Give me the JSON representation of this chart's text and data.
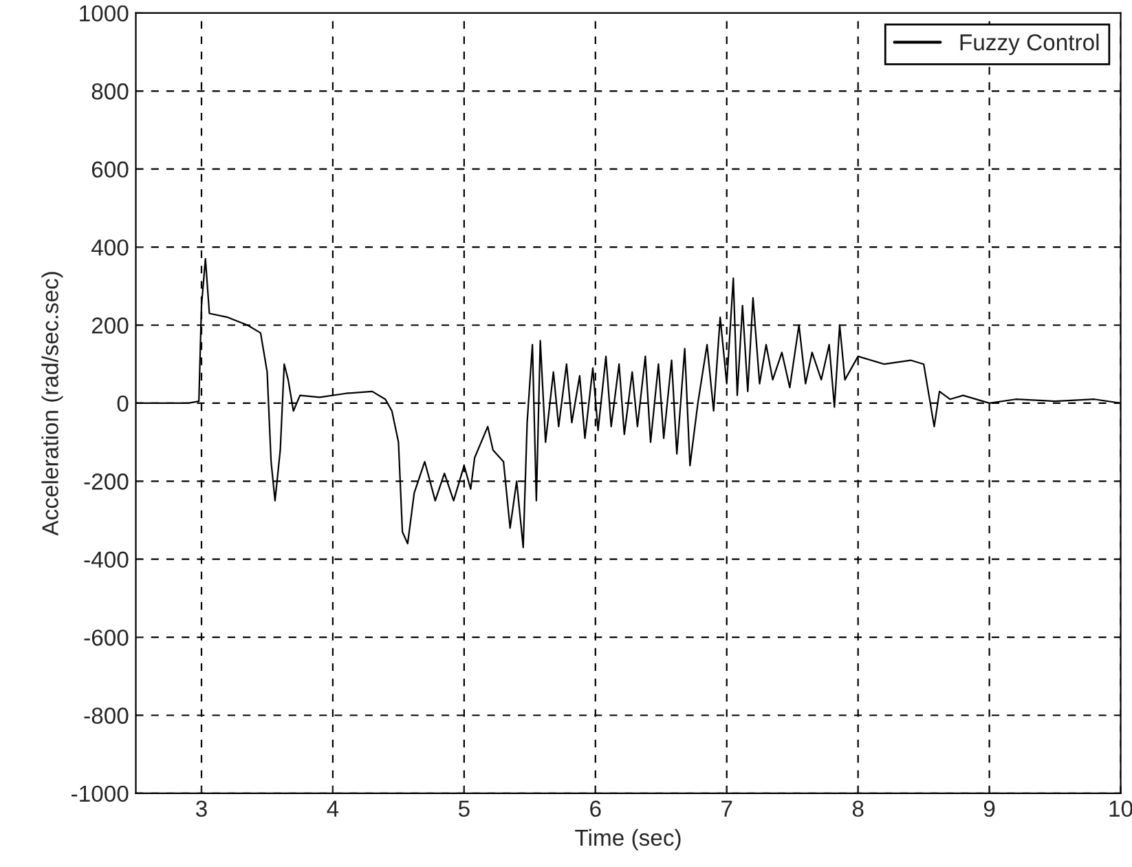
{
  "chart_data": {
    "type": "line",
    "xlabel": "Time (sec)",
    "ylabel": "Acceleration (rad/sec.sec)",
    "xlim": [
      2.5,
      10
    ],
    "xticks": [
      3,
      4,
      5,
      6,
      7,
      8,
      9,
      10
    ],
    "ylim": [
      -1000,
      1000
    ],
    "yticks": [
      -1000,
      -800,
      -600,
      -400,
      -200,
      0,
      200,
      400,
      600,
      800,
      1000
    ],
    "grid": true,
    "legend": "top right",
    "marker": "none",
    "line_style": "solid",
    "series": [
      {
        "name": "Fuzzy Control",
        "color": "#000000",
        "x": [
          2.5,
          2.9,
          2.98,
          3.0,
          3.03,
          3.06,
          3.2,
          3.35,
          3.45,
          3.5,
          3.53,
          3.56,
          3.6,
          3.63,
          3.66,
          3.7,
          3.75,
          3.9,
          4.1,
          4.3,
          4.4,
          4.45,
          4.5,
          4.53,
          4.57,
          4.62,
          4.7,
          4.78,
          4.85,
          4.92,
          5.0,
          5.05,
          5.08,
          5.18,
          5.22,
          5.3,
          5.35,
          5.4,
          5.45,
          5.48,
          5.52,
          5.55,
          5.58,
          5.62,
          5.68,
          5.72,
          5.78,
          5.82,
          5.88,
          5.92,
          5.98,
          6.02,
          6.08,
          6.12,
          6.18,
          6.22,
          6.28,
          6.32,
          6.38,
          6.42,
          6.48,
          6.52,
          6.58,
          6.62,
          6.68,
          6.72,
          6.78,
          6.85,
          6.9,
          6.95,
          7.0,
          7.05,
          7.08,
          7.12,
          7.16,
          7.2,
          7.25,
          7.3,
          7.35,
          7.42,
          7.48,
          7.55,
          7.6,
          7.65,
          7.72,
          7.78,
          7.82,
          7.86,
          7.9,
          8.0,
          8.2,
          8.4,
          8.5,
          8.55,
          8.58,
          8.62,
          8.7,
          8.8,
          9.0,
          9.2,
          9.5,
          9.8,
          10
        ],
        "values": [
          0,
          0,
          5,
          250,
          370,
          230,
          220,
          200,
          180,
          80,
          -150,
          -250,
          -120,
          100,
          60,
          -20,
          20,
          15,
          25,
          30,
          10,
          -20,
          -100,
          -330,
          -360,
          -230,
          -150,
          -250,
          -180,
          -250,
          -160,
          -220,
          -140,
          -60,
          -120,
          -150,
          -320,
          -200,
          -370,
          -50,
          150,
          -250,
          160,
          -100,
          80,
          -60,
          100,
          -50,
          70,
          -90,
          90,
          -70,
          120,
          -60,
          100,
          -80,
          80,
          -60,
          120,
          -100,
          100,
          -90,
          110,
          -130,
          140,
          -160,
          0,
          150,
          -20,
          220,
          50,
          320,
          20,
          250,
          30,
          270,
          50,
          150,
          60,
          130,
          40,
          200,
          50,
          130,
          60,
          150,
          -10,
          200,
          60,
          120,
          100,
          110,
          100,
          0,
          -60,
          30,
          10,
          20,
          0,
          10,
          5,
          10,
          0
        ]
      }
    ]
  }
}
